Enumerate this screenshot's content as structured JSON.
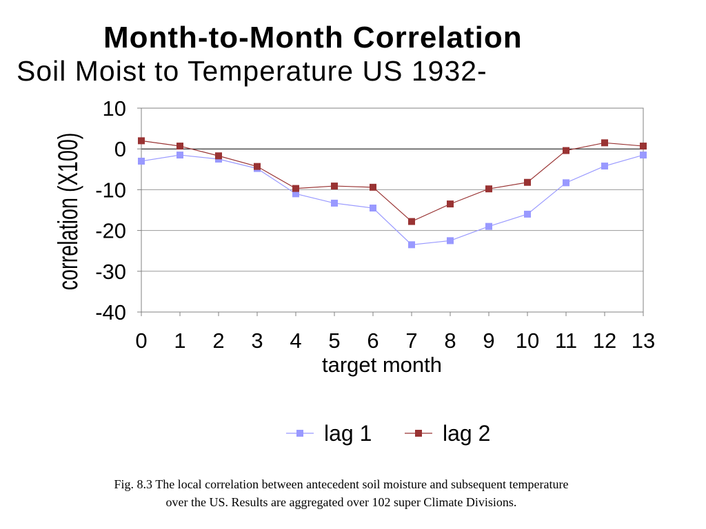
{
  "chart_data": {
    "type": "line",
    "title": "Month-to-Month Correlation",
    "subtitle": "Soil Moist to Temperature US 1932-",
    "xlabel": "target month",
    "ylabel": "correlation (X100)",
    "x": [
      0,
      1,
      2,
      3,
      4,
      5,
      6,
      7,
      8,
      9,
      10,
      11,
      12,
      13
    ],
    "xtick_labels": [
      "0",
      "1",
      "2",
      "3",
      "4",
      "5",
      "6",
      "7",
      "8",
      "9",
      "10",
      "11",
      "12",
      "13"
    ],
    "ylim": [
      -40,
      10
    ],
    "yticks": [
      10,
      0,
      -10,
      -20,
      -30,
      -40
    ],
    "grid": true,
    "legend_position": "bottom",
    "series": [
      {
        "name": "lag 1",
        "color": "#9999ff",
        "values": [
          -3,
          -1.5,
          -2.5,
          -4.8,
          -11,
          -13.3,
          -14.5,
          -23.5,
          -22.5,
          -19,
          -16,
          -8.3,
          -4.2,
          -1.5
        ]
      },
      {
        "name": "lag 2",
        "color": "#993333",
        "values": [
          2,
          0.7,
          -1.7,
          -4.3,
          -9.7,
          -9.1,
          -9.4,
          -17.8,
          -13.5,
          -9.8,
          -8.2,
          -0.4,
          1.5,
          0.7
        ]
      }
    ]
  },
  "caption": {
    "line1": "Fig. 8.3 The local correlation between antecedent soil moisture and subsequent temperature",
    "line2": "over the US. Results are aggregated over 102 super Climate Divisions."
  }
}
